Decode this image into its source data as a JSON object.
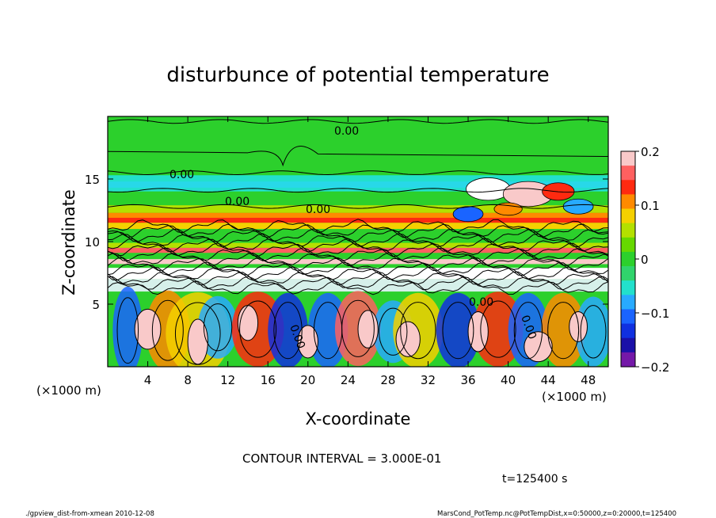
{
  "chart_data": {
    "type": "heatmap",
    "title": "disturbunce of potential temperature",
    "xlabel": "X-coordinate",
    "ylabel": "Z-coordinate",
    "x_unit": "(×1000 m)",
    "y_unit": "(×1000 m)",
    "xlim": [
      0,
      50
    ],
    "ylim": [
      0,
      20
    ],
    "x_ticks": [
      4,
      8,
      12,
      16,
      20,
      24,
      28,
      32,
      36,
      40,
      44,
      48
    ],
    "y_ticks": [
      5,
      10,
      15
    ],
    "colorbar": {
      "ticks": [
        "0.2",
        "0.1",
        "0",
        "−0.1",
        "−0.2"
      ],
      "values": [
        0.2,
        0.1,
        0,
        -0.1,
        -0.2
      ],
      "colors": [
        "#f9c9c9",
        "#ff6060",
        "#ff2a10",
        "#ff8a00",
        "#f5d000",
        "#b4e000",
        "#66d800",
        "#2cd02c",
        "#30d46c",
        "#22e0cc",
        "#28aaff",
        "#1a64ff",
        "#1030e0",
        "#1a10a8",
        "#7418a8"
      ]
    },
    "contour_labels": [
      "0.00",
      "0.00",
      "0.00",
      "0.00",
      "0.00",
      "0.00",
      "0.00"
    ],
    "annotations": {
      "contour_interval": "CONTOUR INTERVAL = 3.000E-01",
      "time": "t=125400 s",
      "footer_left": "./gpview_dist-from-xmean   2010-12-08",
      "footer_right": "MarsCond_PotTemp.nc@PotTempDist,x=0:50000,z=0:20000,t=125400"
    },
    "grid": false
  }
}
